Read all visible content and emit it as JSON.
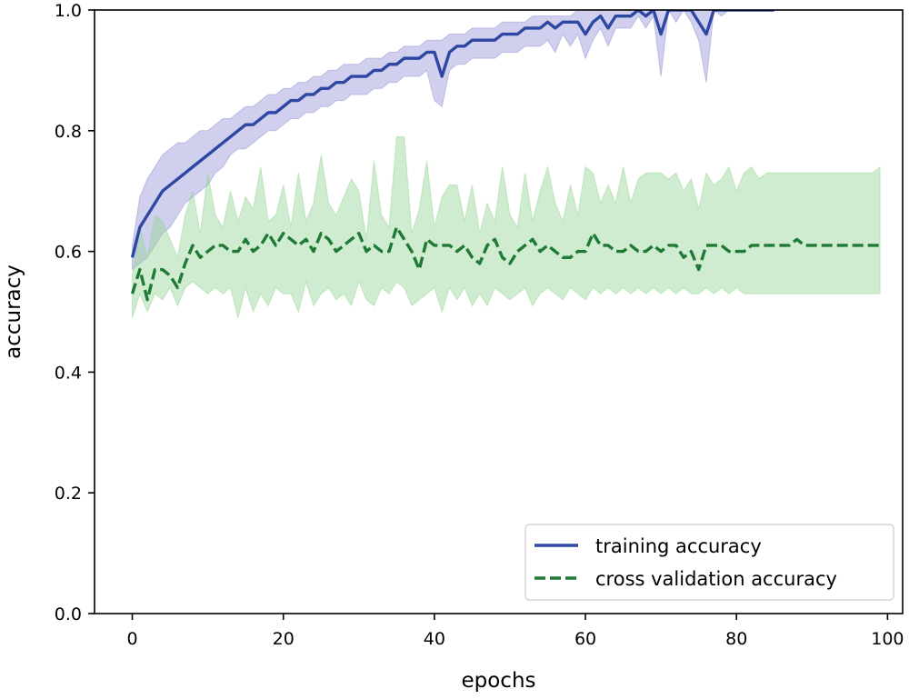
{
  "chart_data": {
    "type": "line",
    "title": "",
    "xlabel": "epochs",
    "ylabel": "accuracy",
    "xlim": [
      -5,
      102
    ],
    "ylim": [
      0.0,
      1.0
    ],
    "xticks": [
      0,
      20,
      40,
      60,
      80,
      100
    ],
    "yticks": [
      0.0,
      0.2,
      0.4,
      0.6,
      0.8,
      1.0
    ],
    "xtick_labels": [
      "0",
      "20",
      "40",
      "60",
      "80",
      "100"
    ],
    "ytick_labels": [
      "0.0",
      "0.2",
      "0.4",
      "0.6",
      "0.8",
      "1.0"
    ],
    "grid": false,
    "legend_position": "lower-right",
    "series": [
      {
        "name": "training accuracy",
        "color": "#2d47a3",
        "band_color": "#8f8fd6",
        "style": "solid",
        "x": [
          0,
          1,
          2,
          3,
          4,
          5,
          6,
          7,
          8,
          9,
          10,
          11,
          12,
          13,
          14,
          15,
          16,
          17,
          18,
          19,
          20,
          21,
          22,
          23,
          24,
          25,
          26,
          27,
          28,
          29,
          30,
          31,
          32,
          33,
          34,
          35,
          36,
          37,
          38,
          39,
          40,
          41,
          42,
          43,
          44,
          45,
          46,
          47,
          48,
          49,
          50,
          51,
          52,
          53,
          54,
          55,
          56,
          57,
          58,
          59,
          60,
          61,
          62,
          63,
          64,
          65,
          66,
          67,
          68,
          69,
          70,
          71,
          72,
          73,
          74,
          75,
          76,
          77,
          78,
          79,
          80,
          81,
          82,
          83,
          84,
          85
        ],
        "values": [
          0.59,
          0.64,
          0.66,
          0.68,
          0.7,
          0.71,
          0.72,
          0.73,
          0.74,
          0.75,
          0.76,
          0.77,
          0.78,
          0.79,
          0.8,
          0.81,
          0.81,
          0.82,
          0.83,
          0.83,
          0.84,
          0.85,
          0.85,
          0.86,
          0.86,
          0.87,
          0.87,
          0.88,
          0.88,
          0.89,
          0.89,
          0.89,
          0.9,
          0.9,
          0.91,
          0.91,
          0.92,
          0.92,
          0.92,
          0.93,
          0.93,
          0.89,
          0.93,
          0.94,
          0.94,
          0.95,
          0.95,
          0.95,
          0.95,
          0.96,
          0.96,
          0.96,
          0.97,
          0.97,
          0.97,
          0.98,
          0.97,
          0.98,
          0.98,
          0.98,
          0.96,
          0.98,
          0.99,
          0.97,
          0.99,
          0.99,
          0.99,
          1.0,
          0.99,
          1.0,
          0.96,
          1.0,
          1.0,
          1.0,
          1.0,
          0.98,
          0.96,
          1.0,
          1.0,
          1.0,
          1.0,
          1.0,
          1.0,
          1.0,
          1.0,
          1.0
        ],
        "upper": [
          0.61,
          0.69,
          0.72,
          0.74,
          0.76,
          0.77,
          0.78,
          0.78,
          0.79,
          0.8,
          0.8,
          0.81,
          0.82,
          0.82,
          0.83,
          0.84,
          0.84,
          0.85,
          0.86,
          0.86,
          0.87,
          0.87,
          0.88,
          0.88,
          0.89,
          0.89,
          0.9,
          0.9,
          0.91,
          0.91,
          0.91,
          0.92,
          0.92,
          0.92,
          0.93,
          0.93,
          0.94,
          0.94,
          0.94,
          0.95,
          0.95,
          0.95,
          0.96,
          0.96,
          0.96,
          0.97,
          0.97,
          0.97,
          0.97,
          0.98,
          0.98,
          0.98,
          0.98,
          0.99,
          0.99,
          0.99,
          0.99,
          0.99,
          0.99,
          1.0,
          1.0,
          1.0,
          1.0,
          1.0,
          1.0,
          1.0,
          1.0,
          1.0,
          1.0,
          1.0,
          1.0,
          1.0,
          1.0,
          1.0,
          1.0,
          1.0,
          1.0,
          1.0,
          1.0,
          1.0,
          1.0,
          1.0,
          1.0,
          1.0,
          1.0,
          1.0
        ],
        "lower": [
          0.57,
          0.58,
          0.59,
          0.61,
          0.63,
          0.64,
          0.66,
          0.68,
          0.69,
          0.7,
          0.71,
          0.73,
          0.74,
          0.76,
          0.77,
          0.77,
          0.78,
          0.79,
          0.8,
          0.8,
          0.81,
          0.82,
          0.82,
          0.83,
          0.83,
          0.84,
          0.84,
          0.85,
          0.85,
          0.86,
          0.86,
          0.86,
          0.87,
          0.87,
          0.88,
          0.88,
          0.89,
          0.89,
          0.89,
          0.9,
          0.85,
          0.84,
          0.9,
          0.91,
          0.91,
          0.92,
          0.92,
          0.92,
          0.92,
          0.93,
          0.93,
          0.93,
          0.94,
          0.94,
          0.94,
          0.95,
          0.93,
          0.96,
          0.94,
          0.96,
          0.92,
          0.95,
          0.97,
          0.94,
          0.97,
          0.97,
          0.97,
          0.99,
          0.97,
          0.99,
          0.89,
          1.0,
          0.98,
          1.0,
          0.98,
          0.95,
          0.88,
          1.0,
          0.99,
          1.0,
          1.0,
          1.0,
          1.0,
          1.0,
          1.0,
          1.0
        ]
      },
      {
        "name": "cross validation accuracy",
        "color": "#1f7a35",
        "band_color": "#96d596",
        "style": "dashed",
        "x": [
          0,
          1,
          2,
          3,
          4,
          5,
          6,
          7,
          8,
          9,
          10,
          11,
          12,
          13,
          14,
          15,
          16,
          17,
          18,
          19,
          20,
          21,
          22,
          23,
          24,
          25,
          26,
          27,
          28,
          29,
          30,
          31,
          32,
          33,
          34,
          35,
          36,
          37,
          38,
          39,
          40,
          41,
          42,
          43,
          44,
          45,
          46,
          47,
          48,
          49,
          50,
          51,
          52,
          53,
          54,
          55,
          56,
          57,
          58,
          59,
          60,
          61,
          62,
          63,
          64,
          65,
          66,
          67,
          68,
          69,
          70,
          71,
          72,
          73,
          74,
          75,
          76,
          77,
          78,
          79,
          80,
          81,
          82,
          83,
          84,
          85,
          86,
          87,
          88,
          89,
          90,
          91,
          92,
          93,
          94,
          95,
          96,
          97,
          98,
          99
        ],
        "values": [
          0.53,
          0.57,
          0.52,
          0.57,
          0.57,
          0.56,
          0.54,
          0.58,
          0.61,
          0.59,
          0.6,
          0.61,
          0.61,
          0.6,
          0.6,
          0.62,
          0.6,
          0.61,
          0.63,
          0.61,
          0.63,
          0.62,
          0.61,
          0.62,
          0.6,
          0.63,
          0.62,
          0.6,
          0.61,
          0.62,
          0.63,
          0.6,
          0.61,
          0.6,
          0.6,
          0.64,
          0.62,
          0.6,
          0.57,
          0.62,
          0.61,
          0.61,
          0.61,
          0.6,
          0.61,
          0.59,
          0.58,
          0.61,
          0.62,
          0.59,
          0.58,
          0.6,
          0.61,
          0.62,
          0.6,
          0.61,
          0.6,
          0.59,
          0.59,
          0.6,
          0.6,
          0.63,
          0.61,
          0.61,
          0.6,
          0.6,
          0.61,
          0.6,
          0.6,
          0.61,
          0.6,
          0.61,
          0.61,
          0.59,
          0.6,
          0.57,
          0.61,
          0.61,
          0.61,
          0.6,
          0.6,
          0.6,
          0.61,
          0.61,
          0.61,
          0.61,
          0.61,
          0.61,
          0.62,
          0.61,
          0.61,
          0.61,
          0.61,
          0.61,
          0.61,
          0.61,
          0.61,
          0.61,
          0.61,
          0.61
        ],
        "upper": [
          0.56,
          0.64,
          0.59,
          0.66,
          0.65,
          0.62,
          0.59,
          0.66,
          0.7,
          0.63,
          0.73,
          0.66,
          0.64,
          0.7,
          0.65,
          0.69,
          0.67,
          0.74,
          0.65,
          0.66,
          0.71,
          0.64,
          0.73,
          0.65,
          0.68,
          0.76,
          0.68,
          0.66,
          0.69,
          0.72,
          0.7,
          0.62,
          0.75,
          0.66,
          0.64,
          0.79,
          0.79,
          0.63,
          0.67,
          0.75,
          0.64,
          0.69,
          0.71,
          0.71,
          0.65,
          0.71,
          0.63,
          0.68,
          0.65,
          0.74,
          0.66,
          0.64,
          0.73,
          0.65,
          0.7,
          0.74,
          0.68,
          0.65,
          0.71,
          0.66,
          0.74,
          0.73,
          0.68,
          0.71,
          0.68,
          0.74,
          0.68,
          0.72,
          0.73,
          0.73,
          0.73,
          0.72,
          0.73,
          0.7,
          0.72,
          0.67,
          0.73,
          0.71,
          0.72,
          0.74,
          0.7,
          0.73,
          0.74,
          0.72,
          0.73,
          0.73,
          0.73,
          0.73,
          0.73,
          0.73,
          0.73,
          0.73,
          0.73,
          0.73,
          0.73,
          0.73,
          0.73,
          0.73,
          0.73,
          0.74
        ],
        "lower": [
          0.49,
          0.53,
          0.5,
          0.53,
          0.52,
          0.54,
          0.51,
          0.54,
          0.55,
          0.54,
          0.53,
          0.54,
          0.53,
          0.54,
          0.49,
          0.54,
          0.5,
          0.53,
          0.51,
          0.54,
          0.53,
          0.53,
          0.5,
          0.55,
          0.51,
          0.53,
          0.54,
          0.52,
          0.53,
          0.51,
          0.55,
          0.52,
          0.51,
          0.54,
          0.53,
          0.55,
          0.54,
          0.51,
          0.52,
          0.53,
          0.54,
          0.5,
          0.54,
          0.52,
          0.54,
          0.51,
          0.53,
          0.51,
          0.54,
          0.53,
          0.52,
          0.53,
          0.54,
          0.51,
          0.53,
          0.54,
          0.53,
          0.52,
          0.54,
          0.53,
          0.52,
          0.54,
          0.53,
          0.54,
          0.53,
          0.54,
          0.53,
          0.54,
          0.53,
          0.54,
          0.53,
          0.54,
          0.53,
          0.54,
          0.53,
          0.53,
          0.54,
          0.53,
          0.54,
          0.53,
          0.54,
          0.53,
          0.53,
          0.53,
          0.53,
          0.53,
          0.53,
          0.53,
          0.53,
          0.53,
          0.53,
          0.53,
          0.53,
          0.53,
          0.53,
          0.53,
          0.53,
          0.53,
          0.53,
          0.53
        ]
      }
    ]
  }
}
